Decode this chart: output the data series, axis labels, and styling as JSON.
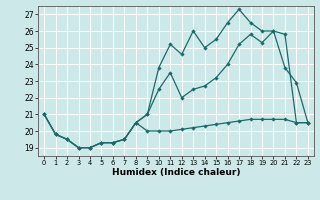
{
  "xlabel": "Humidex (Indice chaleur)",
  "bg_color": "#cce8e8",
  "grid_color": "#ffffff",
  "line_color": "#1a6b6b",
  "xlim": [
    -0.5,
    23.5
  ],
  "ylim": [
    18.5,
    27.5
  ],
  "yticks": [
    19,
    20,
    21,
    22,
    23,
    24,
    25,
    26,
    27
  ],
  "xticks": [
    0,
    1,
    2,
    3,
    4,
    5,
    6,
    7,
    8,
    9,
    10,
    11,
    12,
    13,
    14,
    15,
    16,
    17,
    18,
    19,
    20,
    21,
    22,
    23
  ],
  "series1_x": [
    0,
    1,
    2,
    3,
    4,
    5,
    6,
    7,
    8,
    9,
    10,
    11,
    12,
    13,
    14,
    15,
    16,
    17,
    18,
    19,
    20,
    21,
    22,
    23
  ],
  "series1_y": [
    21.0,
    19.8,
    19.5,
    19.0,
    19.0,
    19.3,
    19.3,
    19.5,
    20.5,
    21.0,
    23.8,
    25.2,
    24.6,
    26.0,
    25.0,
    25.5,
    26.5,
    27.3,
    26.5,
    26.0,
    26.0,
    23.8,
    22.9,
    20.5
  ],
  "series2_x": [
    0,
    1,
    2,
    3,
    4,
    5,
    6,
    7,
    8,
    9,
    10,
    11,
    12,
    13,
    14,
    15,
    16,
    17,
    18,
    19,
    20,
    21,
    22,
    23
  ],
  "series2_y": [
    21.0,
    19.8,
    19.5,
    19.0,
    19.0,
    19.3,
    19.3,
    19.5,
    20.5,
    21.0,
    22.5,
    23.5,
    22.0,
    22.5,
    22.7,
    23.2,
    24.0,
    25.2,
    25.8,
    25.3,
    26.0,
    25.8,
    20.5,
    20.5
  ],
  "series3_x": [
    0,
    1,
    2,
    3,
    4,
    5,
    6,
    7,
    8,
    9,
    10,
    11,
    12,
    13,
    14,
    15,
    16,
    17,
    18,
    19,
    20,
    21,
    22,
    23
  ],
  "series3_y": [
    21.0,
    19.8,
    19.5,
    19.0,
    19.0,
    19.3,
    19.3,
    19.5,
    20.5,
    20.0,
    20.0,
    20.0,
    20.1,
    20.2,
    20.3,
    20.4,
    20.5,
    20.6,
    20.7,
    20.7,
    20.7,
    20.7,
    20.5,
    20.5
  ]
}
